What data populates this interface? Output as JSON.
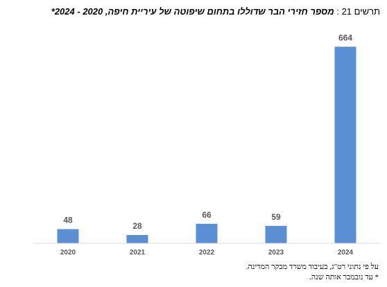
{
  "header": {
    "figure_label": "תרשים 21 :",
    "title_text": "מספר חזירי הבר שדוללו בתחום שיפוטה של עיריית חיפה, 2020 - 2024*"
  },
  "notes": {
    "source": "על פי נתוני רט\"ג, בעיבוד משרד מבקר המדינה.",
    "footnote": "* עד נובמבר אותה שנה."
  },
  "chart_data": {
    "type": "bar",
    "categories": [
      "2020",
      "2021",
      "2022",
      "2023",
      "2024"
    ],
    "values": [
      48,
      28,
      66,
      59,
      664
    ],
    "ylim": [
      0,
      700
    ],
    "grid": false,
    "legend": "none",
    "bar_color": "#5b8fd4",
    "label_color": "#595959",
    "axis_color": "#d9d9d9"
  }
}
